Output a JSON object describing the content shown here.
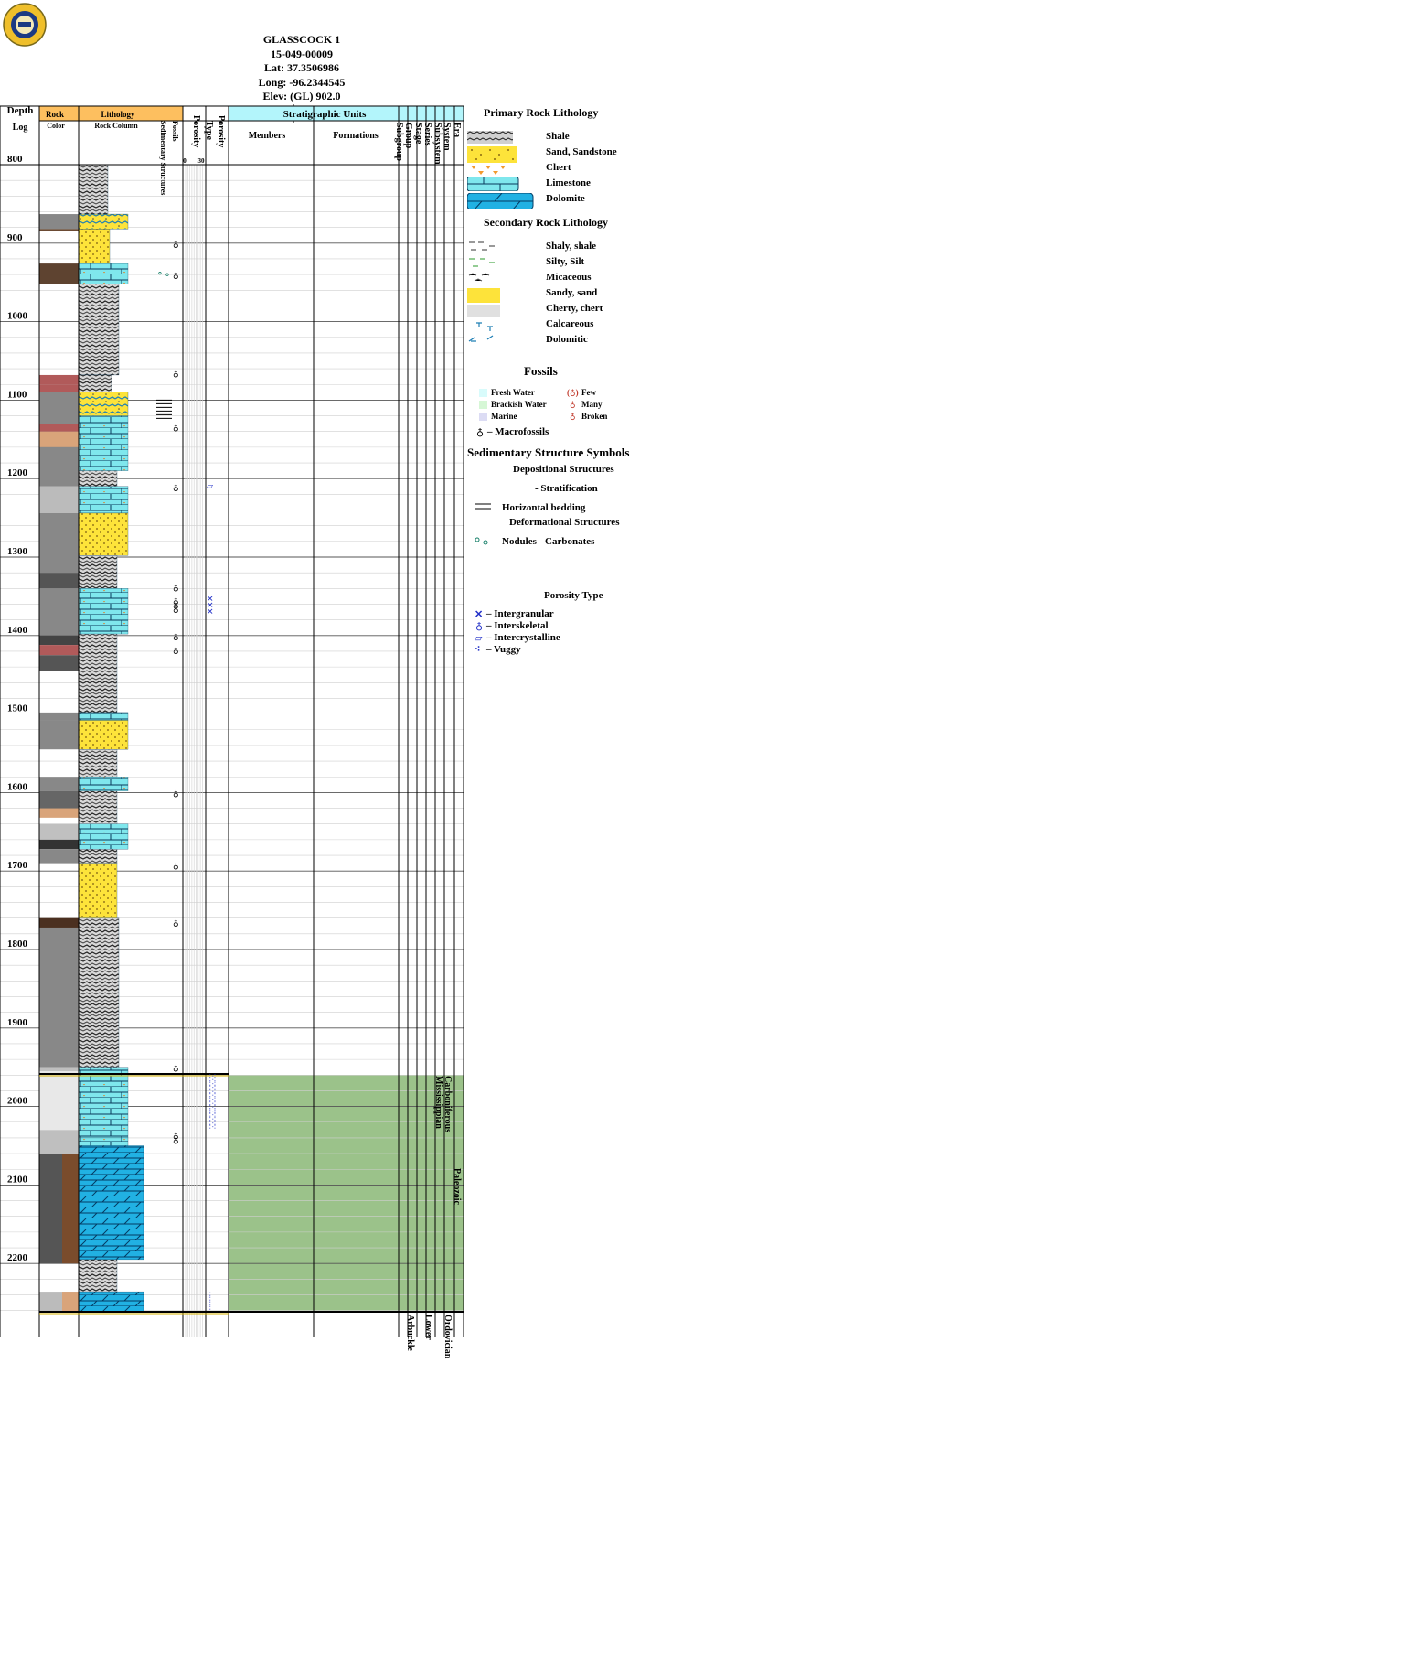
{
  "well": {
    "name": "GLASSCOCK 1",
    "api": "15-049-00009",
    "lat": "Lat: 37.3506986",
    "long": "Long: -96.2344545",
    "elev": "Elev: (GL) 902.0"
  },
  "columns": {
    "depth": "Depth",
    "log": "Log",
    "rock": "Rock",
    "color": "Color",
    "lithology": "Lithology",
    "rock_column": "Rock Column",
    "fossils": "Fossils",
    "sed_structures": "Sedimentary Structures",
    "porosity": "Porosity",
    "porosity_type": "Porosity Type",
    "porosity_scale_min": "0",
    "porosity_scale_max": "30",
    "strat_units": "Stratigraphic Units",
    "members": "Members",
    "formations": "Formations",
    "subgroup": "Subgroup",
    "group": "Group",
    "stage": "Stage",
    "series": "Series",
    "subsystem": "Subsystem",
    "system": "System",
    "era": "Era"
  },
  "depth_labels": [
    "800",
    "900",
    "1000",
    "1100",
    "1200",
    "1300",
    "1400",
    "1500",
    "1600",
    "1700",
    "1800",
    "1900",
    "2000",
    "2100",
    "2200"
  ],
  "strat": {
    "subsystem": "Mississippian",
    "system": "Carboniferous",
    "era": "Paleozoic",
    "group2": "Arbuckle",
    "series2": "Lower",
    "system2": "Ordovician"
  },
  "legend": {
    "primary_title": "Primary Rock Lithology",
    "primary": [
      "Shale",
      "Sand, Sandstone",
      "Chert",
      "Limestone",
      "Dolomite"
    ],
    "secondary_title": "Secondary Rock Lithology",
    "secondary": [
      "Shaly, shale",
      "Silty, Silt",
      "Micaceous",
      "Sandy, sand",
      "Cherty, chert",
      "Calcareous",
      "Dolomitic"
    ],
    "fossils_title": "Fossils",
    "fossil_env": [
      "Fresh Water",
      "Brackish Water",
      "Marine"
    ],
    "fossil_abund": [
      "Few",
      "Many",
      "Broken"
    ],
    "macrofossils": "– Macrofossils",
    "sed_title": "Sedimentary Structure Symbols",
    "dep_title": "Depositional Structures",
    "stratification": "- Stratification",
    "horizontal_bedding": "Horizontal bedding",
    "def_title": "Deformational Structures",
    "nodules": "Nodules - Carbonates",
    "porosity_title": "Porosity Type",
    "porosity_types": [
      "– Intergranular",
      "– Interskeletal",
      "– Intercrystalline",
      "– Vuggy"
    ]
  },
  "colors": {
    "header_orange": "#fdbf5f",
    "header_cyan": "#b3f5fb",
    "strat_green": "#9bc28a",
    "shale_gray": "#888888",
    "sand_yellow": "#fde33a",
    "limestone_cyan": "#7fe7ed",
    "dolomite_blue": "#21b1e3"
  },
  "icons": {
    "logo": "kgs-seal-icon",
    "well": "well-symbol-icon"
  }
}
